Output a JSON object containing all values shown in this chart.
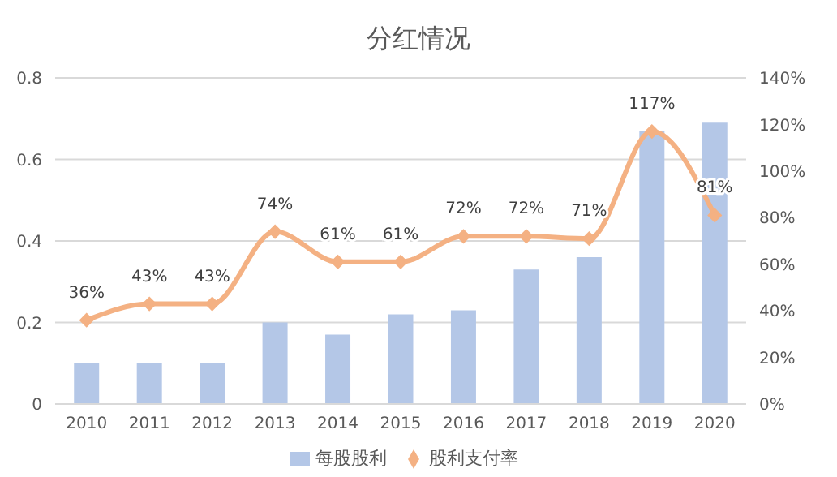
{
  "chart_data": {
    "type": "bar",
    "title": "分红情况",
    "categories": [
      "2010",
      "2011",
      "2012",
      "2013",
      "2014",
      "2015",
      "2016",
      "2017",
      "2018",
      "2019",
      "2020"
    ],
    "series": [
      {
        "name": "每股股利",
        "color": "#b4c7e7",
        "values": [
          0.1,
          0.1,
          0.1,
          0.2,
          0.17,
          0.22,
          0.23,
          0.33,
          0.36,
          0.67,
          0.69
        ]
      },
      {
        "name": "股利支付率",
        "type": "line",
        "axis": "y2",
        "color": "#f4b183",
        "marker": "diamond",
        "values": [
          36,
          43,
          43,
          74,
          61,
          61,
          72,
          72,
          71,
          117,
          81
        ],
        "value_labels": [
          "36%",
          "43%",
          "43%",
          "74%",
          "61%",
          "61%",
          "72%",
          "72%",
          "71%",
          "117%",
          "81%"
        ]
      }
    ],
    "ylim": [
      0,
      0.8
    ],
    "yticks": [
      0,
      0.2,
      0.4,
      0.6,
      0.8
    ],
    "y2lim": [
      0,
      140
    ],
    "y2ticks": [
      {
        "value": 0,
        "label": "0%"
      },
      {
        "value": 20,
        "label": "20%"
      },
      {
        "value": 40,
        "label": "40%"
      },
      {
        "value": 60,
        "label": "60%"
      },
      {
        "value": 80,
        "label": "80%"
      },
      {
        "value": 100,
        "label": "100%"
      },
      {
        "value": 120,
        "label": "120%"
      },
      {
        "value": 140,
        "label": "140%"
      }
    ],
    "grid": "y",
    "legend": "bottom"
  }
}
